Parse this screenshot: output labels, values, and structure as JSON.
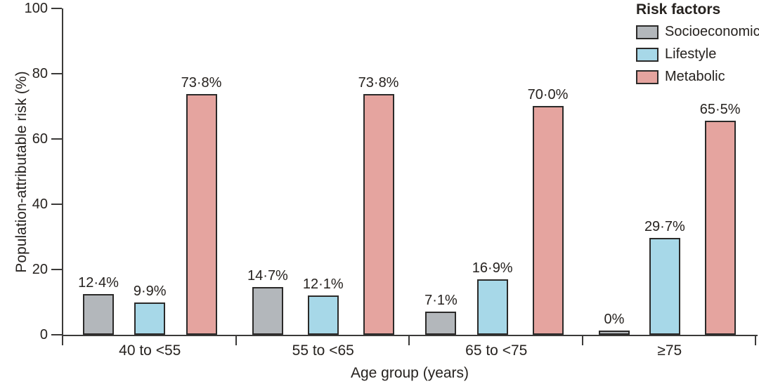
{
  "chart_data": {
    "type": "bar",
    "title": "",
    "xlabel": "Age group (years)",
    "ylabel": "Population-attributable risk (%)",
    "ylim": [
      0,
      100
    ],
    "yticks": [
      0,
      20,
      40,
      60,
      80,
      100
    ],
    "grid": false,
    "legend_title": "Risk factors",
    "legend_position": "top-right",
    "categories": [
      "40 to <55",
      "55 to <65",
      "65 to <75",
      "≥75"
    ],
    "series": [
      {
        "name": "Socioeconomic",
        "color": "#b3b7bb",
        "values": [
          12.4,
          14.7,
          7.1,
          0
        ],
        "value_labels": [
          "12·4%",
          "14·7%",
          "7·1%",
          "0%"
        ]
      },
      {
        "name": "Lifestyle",
        "color": "#a7d8e8",
        "values": [
          9.9,
          12.1,
          16.9,
          29.7
        ],
        "value_labels": [
          "9·9%",
          "12·1%",
          "16·9%",
          "29·7%"
        ]
      },
      {
        "name": "Metabolic",
        "color": "#e5a49f",
        "values": [
          73.8,
          73.8,
          70.0,
          65.5
        ],
        "value_labels": [
          "73·8%",
          "73·8%",
          "70·0%",
          "65·5%"
        ]
      }
    ],
    "colors": {
      "axis": "#3b3a39",
      "bar_border": "#2b2a29",
      "text": "#26221f"
    }
  }
}
